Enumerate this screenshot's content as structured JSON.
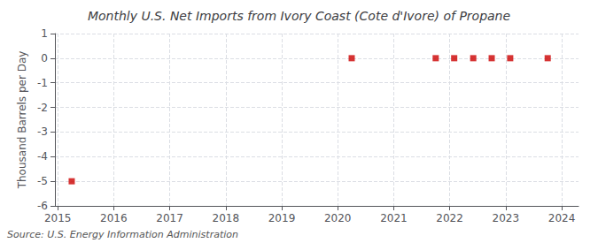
{
  "chart_data": {
    "type": "scatter",
    "title": "Monthly U.S. Net Imports from Ivory Coast (Cote d'Ivore) of Propane",
    "ylabel": "Thousand Barrels per Day",
    "source": "Source: U.S. Energy Information Administration",
    "x": [
      2015.25,
      2020.25,
      2021.75,
      2022.08,
      2022.42,
      2022.75,
      2023.08,
      2023.75
    ],
    "values": [
      -5.0,
      0.0,
      0.0,
      0.0,
      0.0,
      0.0,
      0.0,
      0.0
    ],
    "color": "#cc0000",
    "marker": "square",
    "xlim": [
      2014.95,
      2024.3
    ],
    "xticks": [
      2015,
      2016,
      2017,
      2018,
      2019,
      2020,
      2021,
      2022,
      2023,
      2024
    ],
    "ylim": [
      -6.0,
      1.0
    ],
    "yticks": [
      1,
      0,
      -1,
      -2,
      -3,
      -4,
      -5,
      -6
    ],
    "grid": true
  }
}
